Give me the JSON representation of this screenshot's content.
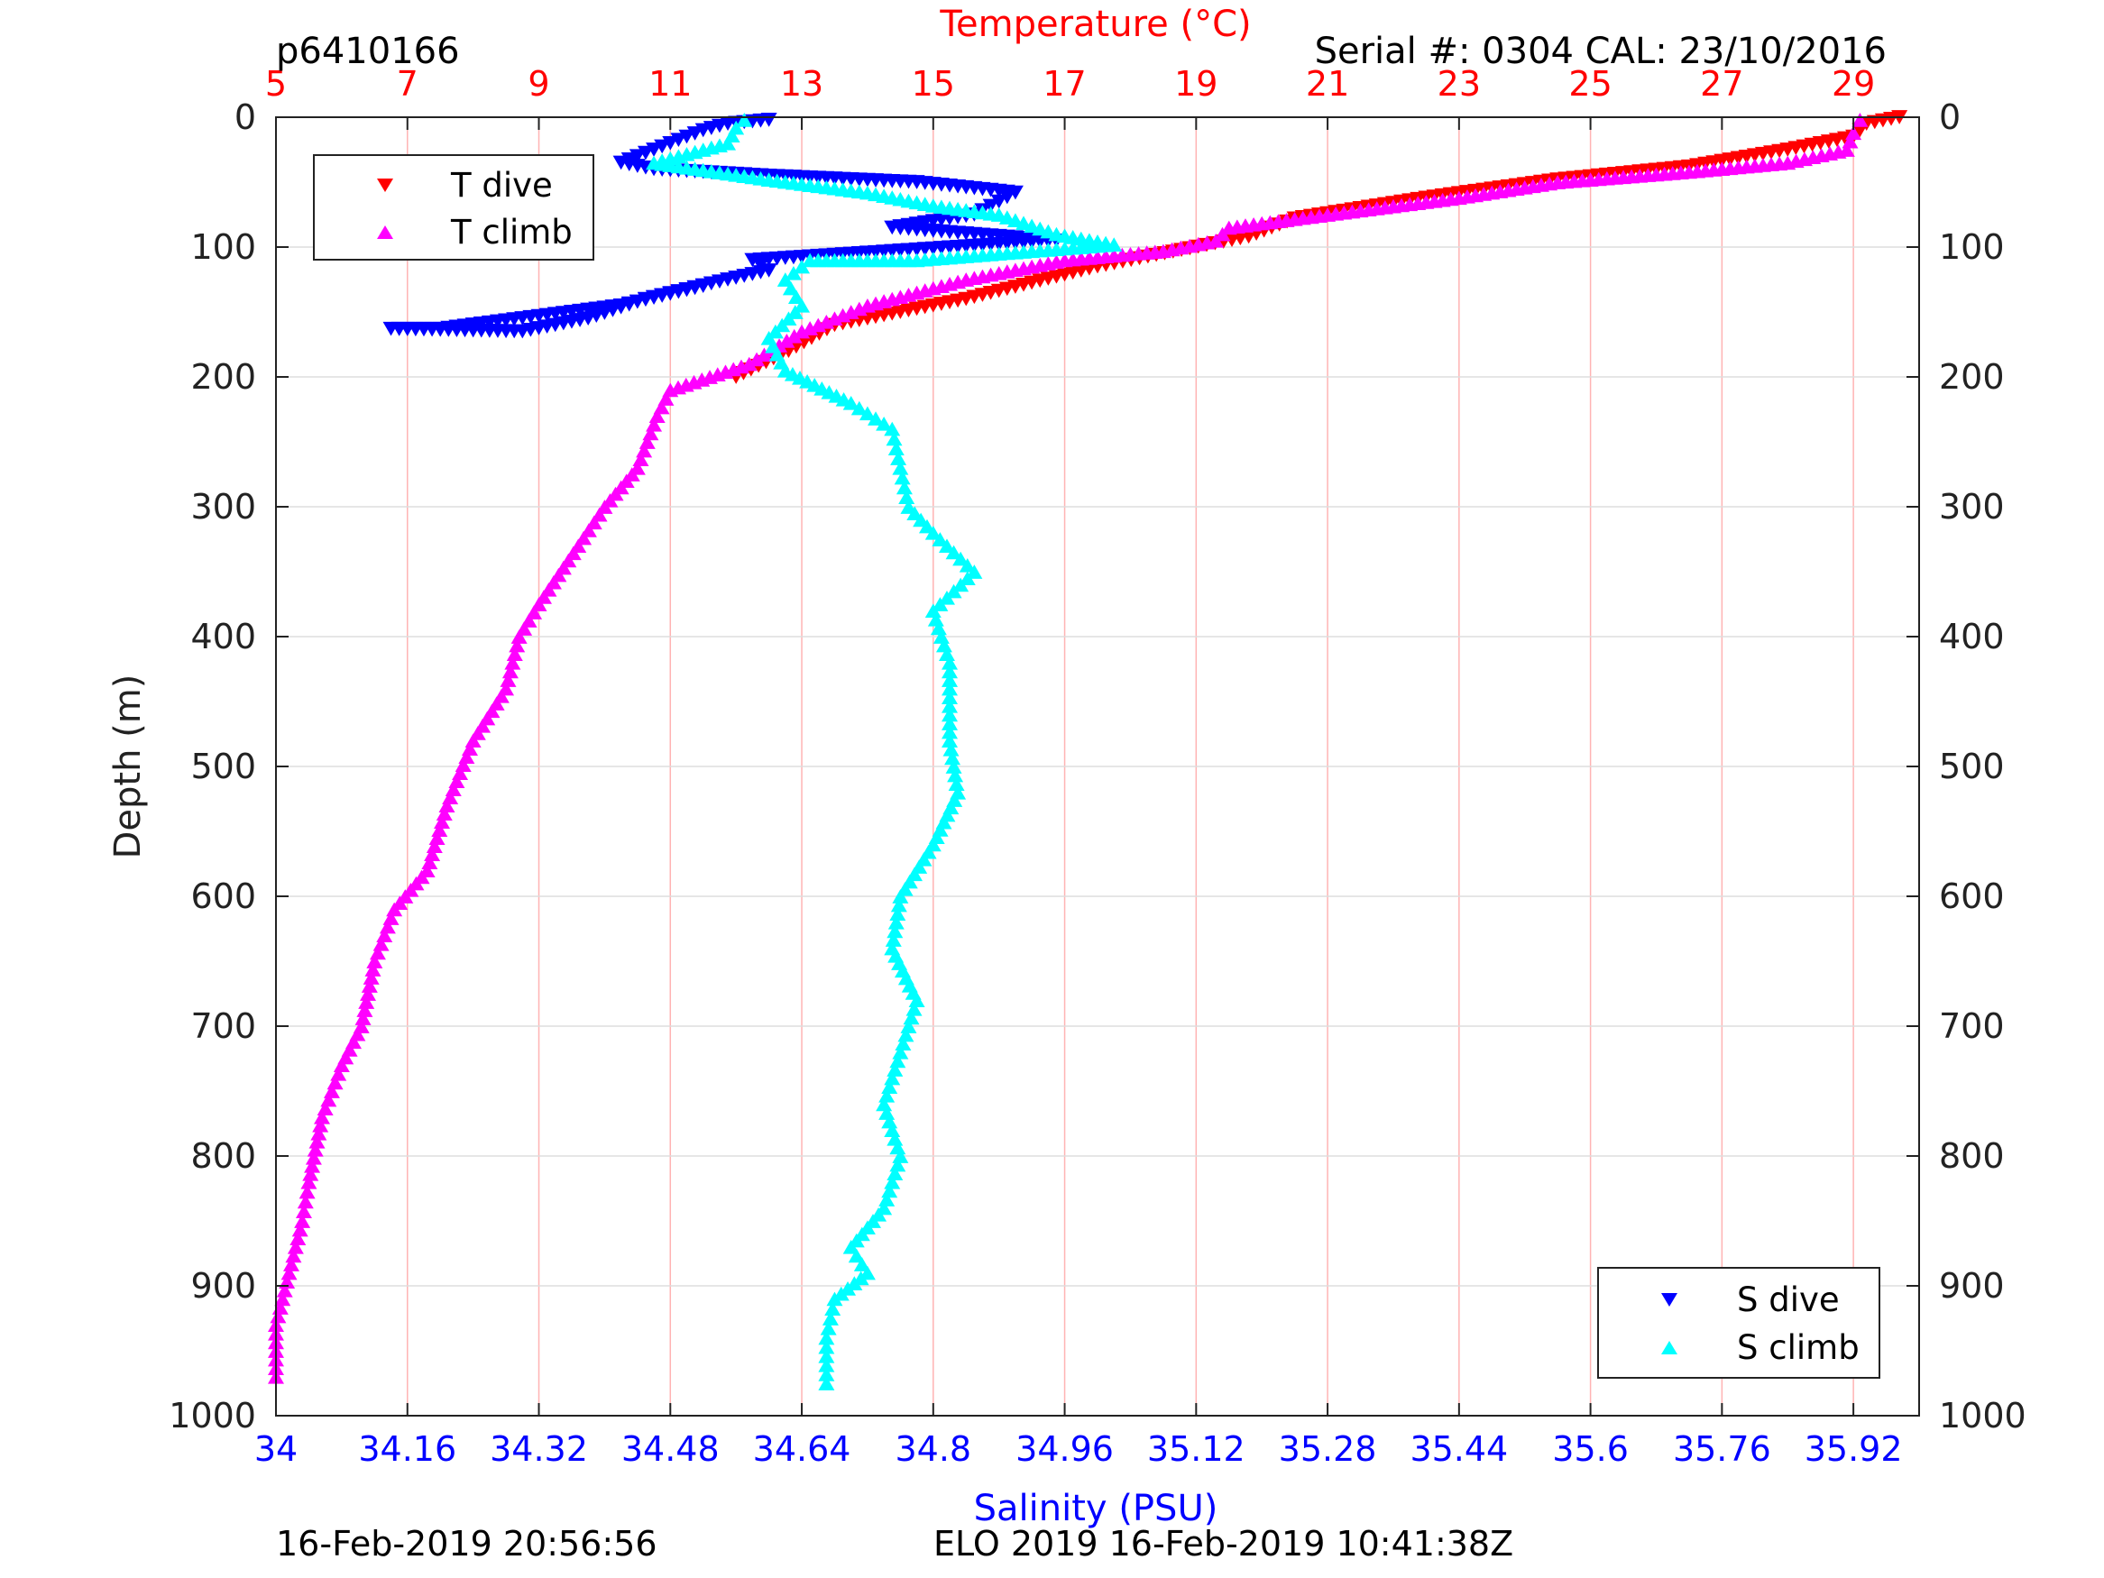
{
  "header": {
    "id_label": "p6410166",
    "serial_label": "Serial #: 0304  CAL: 23/10/2016"
  },
  "footer": {
    "left_label": "16-Feb-2019 20:56:56",
    "center_label": "ELO 2019 16-Feb-2019 10:41:38Z"
  },
  "colors": {
    "temperature_axis": "#ff0000",
    "salinity_axis": "#0000ff",
    "t_dive": "#ff0000",
    "t_climb": "#ff00ff",
    "s_dive": "#0000ff",
    "s_climb": "#00ffff",
    "grid": "#ffb3b3",
    "grid_horizontal": "#dddddd"
  },
  "chart_data": {
    "type": "scatter",
    "temperature_axis_label": "Temperature (°C)",
    "salinity_axis_label": "Salinity (PSU)",
    "depth_axis_label": "Depth (m)",
    "temperature_range": [
      5,
      30
    ],
    "temperature_ticks": [
      "5",
      "7",
      "9",
      "11",
      "13",
      "15",
      "17",
      "19",
      "21",
      "23",
      "25",
      "27",
      "29"
    ],
    "salinity_range": [
      34,
      36
    ],
    "salinity_ticks": [
      "34",
      "34.16",
      "34.32",
      "34.48",
      "34.64",
      "34.8",
      "34.96",
      "35.12",
      "35.28",
      "35.44",
      "35.6",
      "35.76",
      "35.92"
    ],
    "depth_range": [
      0,
      1000
    ],
    "depth_ticks": [
      "0",
      "100",
      "200",
      "300",
      "400",
      "500",
      "600",
      "700",
      "800",
      "900",
      "1000"
    ],
    "grid": true,
    "legend_temperature": {
      "placement": "top-left",
      "entries": [
        "T dive",
        "T climb"
      ]
    },
    "legend_salinity": {
      "placement": "bottom-right",
      "entries": [
        "S dive",
        "S climb"
      ]
    },
    "series": [
      {
        "name": "T dive",
        "axis": "temperature",
        "marker": "triangle-down",
        "points": [
          [
            29.7,
            0
          ],
          [
            29.2,
            5
          ],
          [
            29.0,
            15
          ],
          [
            28.0,
            25
          ],
          [
            26.5,
            38
          ],
          [
            24.5,
            48
          ],
          [
            22.5,
            62
          ],
          [
            20.5,
            78
          ],
          [
            19.8,
            92
          ],
          [
            17.5,
            115
          ],
          [
            15.5,
            140
          ],
          [
            13.5,
            160
          ],
          [
            12.8,
            180
          ],
          [
            12.0,
            200
          ]
        ]
      },
      {
        "name": "T climb",
        "axis": "temperature",
        "marker": "triangle-up",
        "points": [
          [
            29.1,
            2
          ],
          [
            29.0,
            12
          ],
          [
            28.9,
            25
          ],
          [
            28.0,
            35
          ],
          [
            26.5,
            42
          ],
          [
            24.5,
            50
          ],
          [
            23.0,
            62
          ],
          [
            21.0,
            75
          ],
          [
            19.5,
            85
          ],
          [
            19.3,
            95
          ],
          [
            18.5,
            103
          ],
          [
            17.0,
            110
          ],
          [
            15.5,
            125
          ],
          [
            14.0,
            145
          ],
          [
            13.0,
            165
          ],
          [
            12.2,
            190
          ],
          [
            11.0,
            210
          ],
          [
            10.8,
            230
          ],
          [
            10.5,
            270
          ],
          [
            10.0,
            300
          ],
          [
            9.6,
            330
          ],
          [
            9.0,
            375
          ],
          [
            8.7,
            400
          ],
          [
            8.5,
            440
          ],
          [
            8.0,
            480
          ],
          [
            7.6,
            530
          ],
          [
            7.3,
            580
          ],
          [
            6.8,
            610
          ],
          [
            6.5,
            650
          ],
          [
            6.3,
            700
          ],
          [
            6.0,
            730
          ],
          [
            5.7,
            770
          ],
          [
            5.5,
            820
          ],
          [
            5.4,
            850
          ],
          [
            5.2,
            890
          ],
          [
            5.0,
            930
          ],
          [
            5.0,
            970
          ]
        ]
      },
      {
        "name": "S dive",
        "axis": "salinity",
        "marker": "triangle-down",
        "points": [
          [
            34.6,
            2
          ],
          [
            34.55,
            5
          ],
          [
            34.52,
            10
          ],
          [
            34.42,
            35
          ],
          [
            34.46,
            40
          ],
          [
            34.6,
            45
          ],
          [
            34.78,
            50
          ],
          [
            34.9,
            58
          ],
          [
            34.88,
            65
          ],
          [
            34.85,
            75
          ],
          [
            34.75,
            85
          ],
          [
            34.95,
            95
          ],
          [
            34.58,
            110
          ],
          [
            34.6,
            118
          ],
          [
            34.55,
            125
          ],
          [
            34.45,
            140
          ],
          [
            34.38,
            155
          ],
          [
            34.3,
            165
          ],
          [
            34.14,
            163
          ],
          [
            34.2,
            163
          ],
          [
            34.42,
            145
          ],
          [
            34.52,
            130
          ]
        ]
      },
      {
        "name": "S climb",
        "axis": "salinity",
        "marker": "triangle-up",
        "points": [
          [
            34.57,
            2
          ],
          [
            34.56,
            8
          ],
          [
            34.55,
            20
          ],
          [
            34.46,
            35
          ],
          [
            34.6,
            48
          ],
          [
            34.72,
            58
          ],
          [
            34.8,
            68
          ],
          [
            34.88,
            75
          ],
          [
            34.95,
            90
          ],
          [
            35.02,
            98
          ],
          [
            34.78,
            110
          ],
          [
            34.65,
            110
          ],
          [
            34.62,
            125
          ],
          [
            34.64,
            145
          ],
          [
            34.6,
            170
          ],
          [
            34.62,
            195
          ],
          [
            34.7,
            220
          ],
          [
            34.75,
            240
          ],
          [
            34.76,
            270
          ],
          [
            34.77,
            300
          ],
          [
            34.8,
            320
          ],
          [
            34.85,
            350
          ],
          [
            34.8,
            380
          ],
          [
            34.82,
            420
          ],
          [
            34.82,
            480
          ],
          [
            34.83,
            520
          ],
          [
            34.8,
            560
          ],
          [
            34.76,
            600
          ],
          [
            34.75,
            640
          ],
          [
            34.78,
            680
          ],
          [
            34.76,
            720
          ],
          [
            34.74,
            760
          ],
          [
            34.76,
            800
          ],
          [
            34.74,
            840
          ],
          [
            34.7,
            870
          ],
          [
            34.72,
            890
          ],
          [
            34.68,
            910
          ],
          [
            34.67,
            940
          ],
          [
            34.67,
            975
          ]
        ]
      }
    ]
  }
}
